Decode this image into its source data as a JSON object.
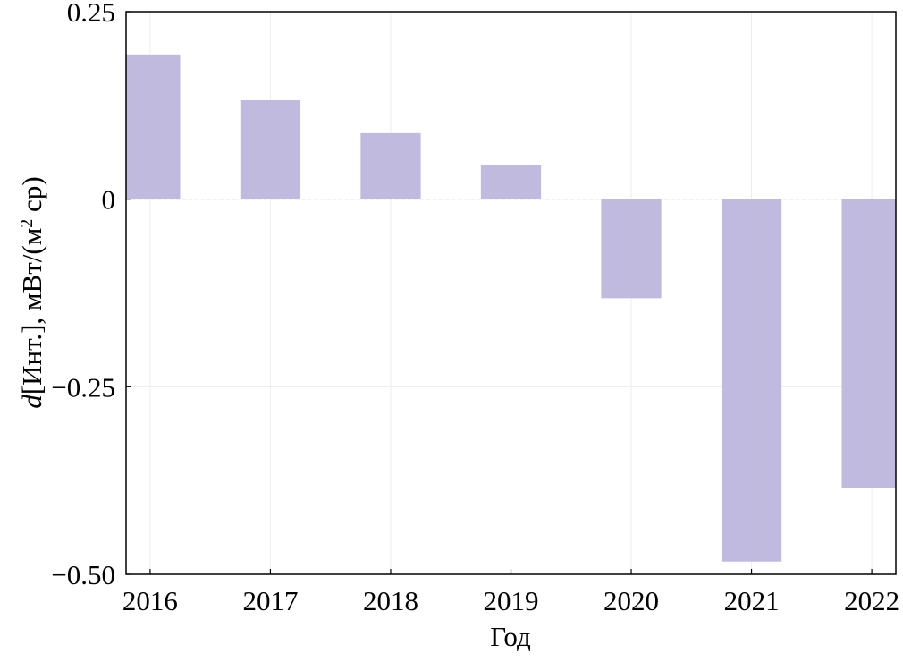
{
  "chart_data": {
    "type": "bar",
    "x": [
      2016,
      2017,
      2018,
      2019,
      2020,
      2021,
      2022
    ],
    "values": [
      0.193,
      0.132,
      0.088,
      0.045,
      -0.132,
      -0.483,
      -0.385
    ],
    "color": "#c0bbde",
    "xlim": [
      2015.8,
      2022.2
    ],
    "xticks": [
      2016,
      2017,
      2018,
      2019,
      2020,
      2021,
      2022
    ],
    "ylim": [
      -0.5,
      0.25
    ],
    "yticks": [
      {
        "value": -0.5,
        "label": "−0.50"
      },
      {
        "value": -0.25,
        "label": "−0.25"
      },
      0,
      0.25
    ],
    "xlabel": "Год",
    "ylabel": [
      "d",
      "[Инт.], мВт/(м",
      "2",
      " ср)"
    ],
    "grid": true
  }
}
